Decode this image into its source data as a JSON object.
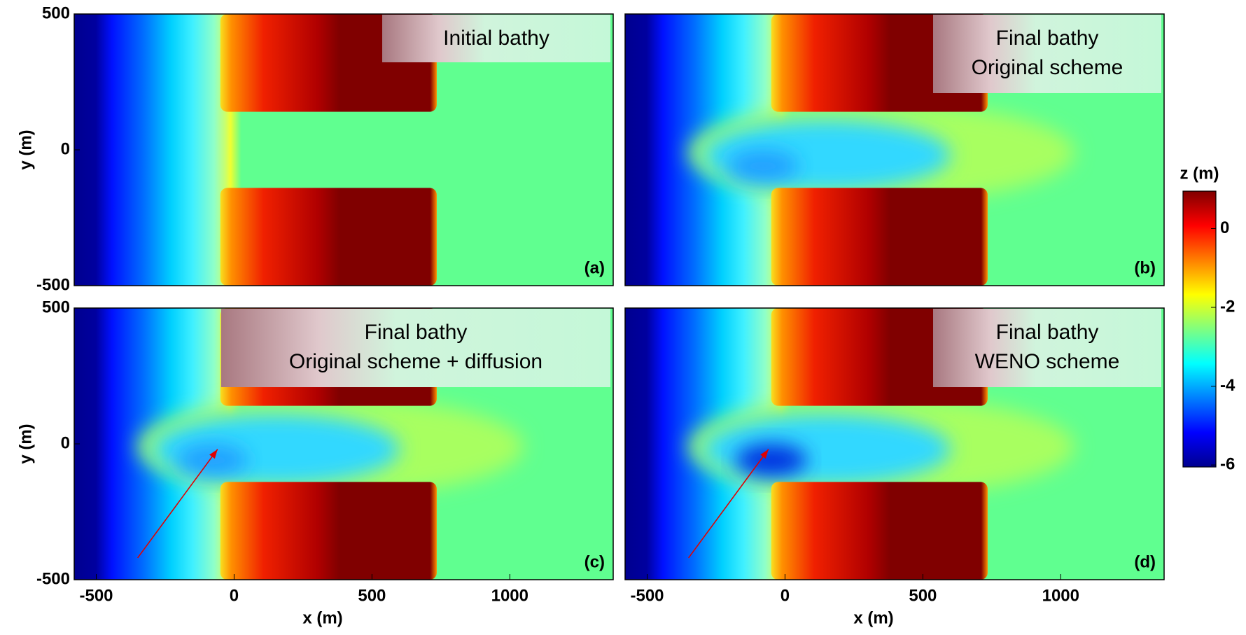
{
  "chart_data": [
    {
      "type": "heatmap",
      "panel_label": "(a)",
      "annotation": [
        "Initial bathy"
      ],
      "xlim": [
        -580,
        1375
      ],
      "ylim": [
        -500,
        500
      ],
      "yticks": [
        -500,
        0,
        500
      ],
      "ylabel": "y (m)"
    },
    {
      "type": "heatmap",
      "panel_label": "(b)",
      "annotation": [
        "Final bathy",
        "Original scheme"
      ],
      "xlim": [
        -580,
        1375
      ],
      "ylim": [
        -500,
        500
      ]
    },
    {
      "type": "heatmap",
      "panel_label": "(c)",
      "annotation": [
        "Final bathy",
        "Original scheme + diffusion"
      ],
      "xlim": [
        -580,
        1375
      ],
      "ylim": [
        -500,
        500
      ],
      "xticks": [
        -500,
        0,
        500,
        1000
      ],
      "yticks": [
        -500,
        0,
        500
      ],
      "xlabel": "x (m)",
      "ylabel": "y (m)"
    },
    {
      "type": "heatmap",
      "panel_label": "(d)",
      "annotation": [
        "Final bathy",
        "WENO scheme"
      ],
      "xlim": [
        -580,
        1375
      ],
      "ylim": [
        -500,
        500
      ],
      "xticks": [
        -500,
        0,
        500,
        1000
      ],
      "xlabel": "x (m)"
    },
    {
      "type": "colorbar",
      "label": "z (m)",
      "zlim": [
        -6.05,
        0.95
      ],
      "zticks": [
        -6,
        -4,
        -2,
        0
      ]
    }
  ]
}
